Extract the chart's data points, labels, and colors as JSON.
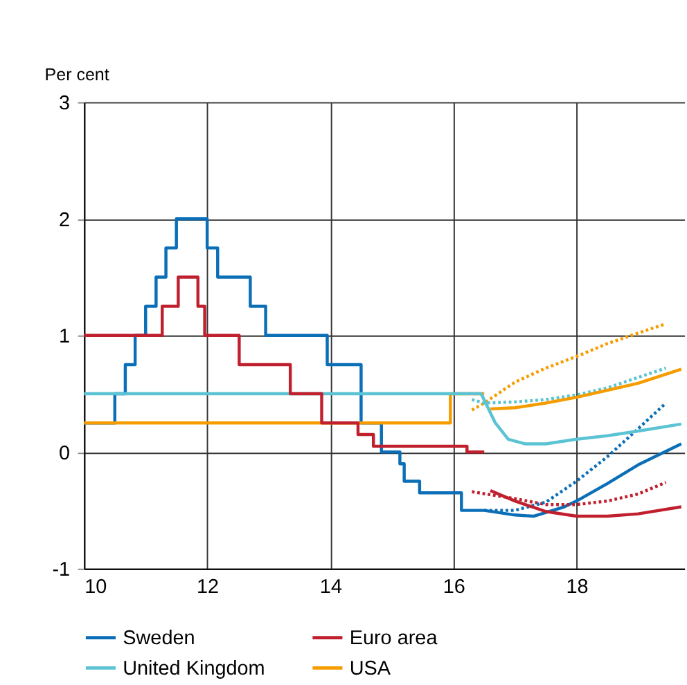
{
  "chart_data": {
    "type": "line",
    "ylabel": "Per cent",
    "xlim": [
      10,
      19.75
    ],
    "xticks": [
      10,
      12,
      14,
      16,
      18
    ],
    "ylim": [
      -1,
      3
    ],
    "yticks": [
      -1,
      0,
      1,
      2,
      3
    ],
    "grid": true,
    "legend": "bottom",
    "series": [
      {
        "name": "Sweden",
        "color": "#0b6fb8",
        "type": "line",
        "x": [
          10,
          10.5,
          10.5,
          10.67,
          10.67,
          10.83,
          10.83,
          11,
          11,
          11.17,
          11.17,
          11.33,
          11.33,
          11.5,
          11.5,
          12,
          12,
          12.17,
          12.17,
          12.7,
          12.7,
          12.95,
          12.95,
          13.95,
          13.95,
          14.5,
          14.5,
          14.83,
          14.83,
          15.13,
          15.13,
          15.2,
          15.2,
          15.45,
          15.45,
          16.13,
          16.13,
          16.5,
          17.0,
          17.3,
          17.8,
          18.0,
          18.5,
          19.0,
          19.7
        ],
        "values": [
          0.25,
          0.25,
          0.5,
          0.5,
          0.75,
          0.75,
          1,
          1,
          1.25,
          1.25,
          1.5,
          1.5,
          1.75,
          1.75,
          2,
          2,
          1.75,
          1.75,
          1.5,
          1.5,
          1.25,
          1.25,
          1,
          1,
          0.75,
          0.75,
          0.25,
          0.25,
          0,
          0,
          -0.1,
          -0.1,
          -0.25,
          -0.25,
          -0.35,
          -0.35,
          -0.5,
          -0.5,
          -0.54,
          -0.55,
          -0.47,
          -0.42,
          -0.27,
          -0.11,
          0.07
        ]
      },
      {
        "name": "Euro area",
        "color": "#c0202e",
        "type": "step",
        "x": [
          10,
          11.27,
          11.53,
          11.85,
          11.96,
          12.52,
          13.35,
          13.86,
          14.45,
          14.7,
          16.22,
          16.5
        ],
        "values": [
          1,
          1.25,
          1.5,
          1.25,
          1,
          0.75,
          0.5,
          0.25,
          0.15,
          0.05,
          0,
          0
        ]
      },
      {
        "name": "United Kingdom",
        "color": "#5bc3d3",
        "type": "line",
        "x": [
          10,
          16.45,
          16.68,
          16.89,
          17.17,
          17.5,
          18.0,
          18.5,
          19.0,
          19.7
        ],
        "values": [
          0.5,
          0.5,
          0.25,
          0.11,
          0.07,
          0.07,
          0.11,
          0.14,
          0.18,
          0.24
        ]
      },
      {
        "name": "USA",
        "color": "#f59c00",
        "type": "step",
        "x": [
          10,
          15.95,
          16.5
        ],
        "values": [
          0.25,
          0.5,
          0.5
        ]
      },
      {
        "color": "#c0202e",
        "type": "line",
        "x": [
          16.6,
          17.0,
          17.5,
          18.0,
          18.5,
          19.0,
          19.7
        ],
        "values": [
          -0.33,
          -0.42,
          -0.51,
          -0.55,
          -0.55,
          -0.53,
          -0.47
        ]
      },
      {
        "color": "#f59c00",
        "type": "line",
        "x": [
          16.6,
          17.0,
          17.5,
          18.0,
          18.5,
          19.0,
          19.7
        ],
        "values": [
          0.37,
          0.38,
          0.42,
          0.47,
          0.53,
          0.59,
          0.71
        ]
      },
      {
        "color": "#0b6fb8",
        "type": "line",
        "line_style": "dotted",
        "x": [
          16.5,
          17.0,
          17.5,
          18.0,
          18.5,
          19.0,
          19.45
        ],
        "values": [
          -0.5,
          -0.5,
          -0.43,
          -0.25,
          -0.04,
          0.2,
          0.42
        ]
      },
      {
        "color": "#c0202e",
        "type": "line",
        "line_style": "dotted",
        "x": [
          16.3,
          17.0,
          17.5,
          18.0,
          18.5,
          19.0,
          19.45
        ],
        "values": [
          -0.34,
          -0.4,
          -0.45,
          -0.45,
          -0.42,
          -0.36,
          -0.26
        ]
      },
      {
        "color": "#5bc3d3",
        "type": "line",
        "line_style": "dotted",
        "x": [
          16.3,
          16.5,
          17.0,
          17.5,
          18.0,
          18.5,
          19.0,
          19.45
        ],
        "values": [
          0.45,
          0.42,
          0.43,
          0.45,
          0.49,
          0.55,
          0.64,
          0.72
        ]
      },
      {
        "color": "#f59c00",
        "type": "line",
        "line_style": "dotted",
        "x": [
          16.3,
          16.5,
          17.0,
          17.5,
          18.0,
          18.5,
          19.0,
          19.45
        ],
        "values": [
          0.36,
          0.42,
          0.6,
          0.72,
          0.82,
          0.93,
          1.02,
          1.1
        ]
      }
    ]
  }
}
